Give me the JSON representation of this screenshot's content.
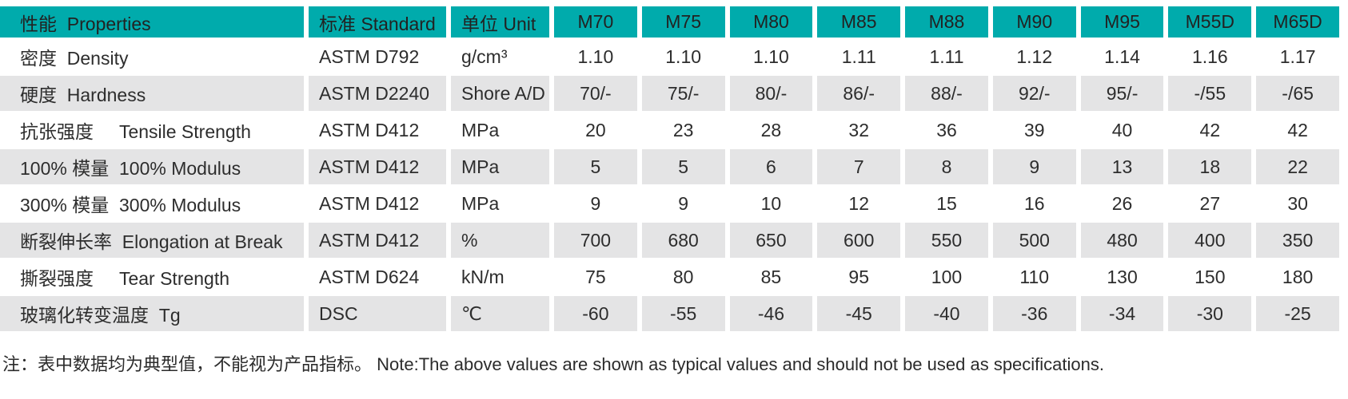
{
  "colors": {
    "header_bg": "#00abac",
    "row_stripe_bg": "#e4e4e5",
    "body_bg": "#ffffff",
    "text": "#2d2d2d"
  },
  "table": {
    "header": {
      "property": "性能  Properties",
      "standard": "标准 Standard",
      "unit": "单位 Unit",
      "grades": [
        "M70",
        "M75",
        "M80",
        "M85",
        "M88",
        "M90",
        "M95",
        "M55D",
        "M65D"
      ]
    },
    "rows": [
      {
        "property": "密度  Density",
        "standard": "ASTM D792",
        "unit": "g/cm³",
        "values": [
          "1.10",
          "1.10",
          "1.10",
          "1.11",
          "1.11",
          "1.12",
          "1.14",
          "1.16",
          "1.17"
        ]
      },
      {
        "property": "硬度  Hardness",
        "standard": "ASTM D2240",
        "unit": "Shore A/D",
        "values": [
          "70/-",
          "75/-",
          "80/-",
          "86/-",
          "88/-",
          "92/-",
          "95/-",
          "-/55",
          "-/65"
        ]
      },
      {
        "property": "抗张强度     Tensile Strength",
        "standard": "ASTM D412",
        "unit": "MPa",
        "values": [
          "20",
          "23",
          "28",
          "32",
          "36",
          "39",
          "40",
          "42",
          "42"
        ]
      },
      {
        "property": "100% 模量  100% Modulus",
        "standard": "ASTM D412",
        "unit": "MPa",
        "values": [
          "5",
          "5",
          "6",
          "7",
          "8",
          "9",
          "13",
          "18",
          "22"
        ]
      },
      {
        "property": "300% 模量  300% Modulus",
        "standard": "ASTM D412",
        "unit": "MPa",
        "values": [
          "9",
          "9",
          "10",
          "12",
          "15",
          "16",
          "26",
          "27",
          "30"
        ]
      },
      {
        "property": "断裂伸长率  Elongation at Break",
        "standard": "ASTM D412",
        "unit": "%",
        "values": [
          "700",
          "680",
          "650",
          "600",
          "550",
          "500",
          "480",
          "400",
          "350"
        ]
      },
      {
        "property": "撕裂强度     Tear Strength",
        "standard": "ASTM D624",
        "unit": "kN/m",
        "values": [
          "75",
          "80",
          "85",
          "95",
          "100",
          "110",
          "130",
          "150",
          "180"
        ]
      },
      {
        "property": "玻璃化转变温度  Tg",
        "standard": "DSC",
        "unit": "℃",
        "values": [
          "-60",
          "-55",
          "-46",
          "-45",
          "-40",
          "-36",
          "-34",
          "-30",
          "-25"
        ]
      }
    ]
  },
  "footnote": {
    "text": "注：表中数据均为典型值，不能视为产品指标。 Note:The above values are shown as typical values and should not be used as specifications."
  }
}
